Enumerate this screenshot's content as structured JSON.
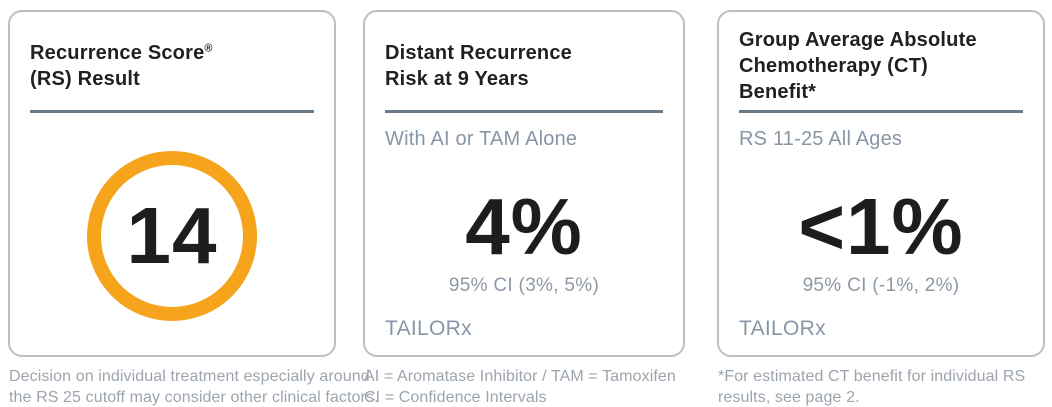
{
  "colors": {
    "ring_orange": "#f6a41c",
    "title_black": "#231f20",
    "divider_slate": "#6b7a89",
    "subtitle_bluegray": "#8796a6",
    "footnote_gray": "#9ca4ae",
    "card_border": "#bcc0c4"
  },
  "card1": {
    "title_line1": "Recurrence Score",
    "registered_mark": "®",
    "title_line2": "(RS) Result",
    "score_value": "14",
    "footnote_line1": "Decision on individual treatment especially around",
    "footnote_line2": "the RS 25 cutoff may consider other clinical factors."
  },
  "card2": {
    "title_line1": "Distant Recurrence",
    "title_line2": "Risk at 9 Years",
    "subtitle": "With AI or TAM Alone",
    "value": "4%",
    "ci": "95% CI (3%, 5%)",
    "source": "TAILORx",
    "footnote_line1": "AI = Aromatase Inhibitor / TAM = Tamoxifen",
    "footnote_line2": "CI = Confidence Intervals"
  },
  "card3": {
    "title_line1": "Group Average Absolute",
    "title_line2": "Chemotherapy (CT)",
    "title_line3": "Benefit*",
    "subtitle": "RS 11-25 All Ages",
    "value": "<1%",
    "ci": "95% CI (-1%, 2%)",
    "source": "TAILORx",
    "footnote_line1": "*For estimated CT benefit for individual RS",
    "footnote_line2": "results, see page 2."
  }
}
